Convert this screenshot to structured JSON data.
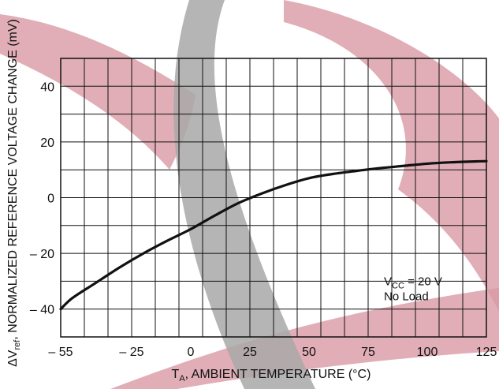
{
  "chart_data": {
    "type": "line",
    "title": "",
    "xlabel_main": "T",
    "xlabel_sub": "A",
    "xlabel_rest": ", AMBIENT TEMPERATURE (°C)",
    "ylabel_main": "ΔV",
    "ylabel_sub": "ref",
    "ylabel_rest": ", NORMALIZED REFERENCE VOLTAGE CHANGE (mV)",
    "xlim": [
      -55,
      125
    ],
    "ylim": [
      -50,
      50
    ],
    "x_ticks": [
      -55,
      -25,
      0,
      25,
      50,
      75,
      100,
      125
    ],
    "x_tick_labels": [
      "– 55",
      "– 25",
      "0",
      "25",
      "50",
      "75",
      "100",
      "125"
    ],
    "y_ticks": [
      -40,
      -20,
      0,
      20,
      40
    ],
    "y_tick_labels": [
      "– 40",
      "– 20",
      "0",
      "20",
      "40"
    ],
    "x_grid": [
      -55,
      -45,
      -35,
      -25,
      -15,
      -5,
      5,
      15,
      25,
      35,
      45,
      55,
      65,
      75,
      85,
      95,
      105,
      115,
      125
    ],
    "y_grid": [
      -50,
      -40,
      -30,
      -20,
      -10,
      0,
      10,
      20,
      30,
      40,
      50
    ],
    "grid": true,
    "annotation": {
      "line1_main": "V",
      "line1_sub": "CC",
      "line1_rest": " = 20 V",
      "line2": "No Load"
    },
    "series": [
      {
        "color": "#111111",
        "x": [
          -55,
          -50,
          -40,
          -30,
          -20,
          -10,
          0,
          10,
          20,
          30,
          40,
          50,
          60,
          70,
          80,
          90,
          100,
          110,
          120,
          125
        ],
        "y": [
          -40,
          -36,
          -30.5,
          -25,
          -20,
          -15.5,
          -11.3,
          -6.5,
          -2,
          1.5,
          4.5,
          7,
          8.5,
          9.6,
          10.6,
          11.4,
          12.2,
          12.7,
          13,
          13.1
        ]
      }
    ]
  },
  "watermark": {
    "colors": [
      "#d99aa5",
      "#a8a8a8"
    ]
  }
}
